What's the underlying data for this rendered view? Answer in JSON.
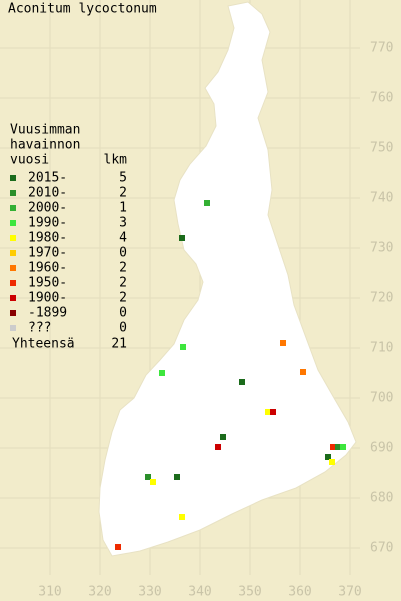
{
  "title": "Aconitum lycoctonum",
  "legend": {
    "heading": [
      "Vuusimman",
      "havainnon",
      "vuosi"
    ],
    "count_heading": "lkm",
    "rows": [
      {
        "label": "2015-",
        "count": 5,
        "color": "#1b6b1b"
      },
      {
        "label": "2010-",
        "count": 2,
        "color": "#2a8f2a"
      },
      {
        "label": "2000-",
        "count": 1,
        "color": "#33b033"
      },
      {
        "label": "1990-",
        "count": 3,
        "color": "#3de63d"
      },
      {
        "label": "1980-",
        "count": 4,
        "color": "#ffff00"
      },
      {
        "label": "1970-",
        "count": 0,
        "color": "#ffcc00"
      },
      {
        "label": "1960-",
        "count": 2,
        "color": "#ff7700"
      },
      {
        "label": "1950-",
        "count": 2,
        "color": "#ee2a00"
      },
      {
        "label": "1900-",
        "count": 2,
        "color": "#cc0000"
      },
      {
        "label": "-1899",
        "count": 0,
        "color": "#880000"
      },
      {
        "label": "???",
        "count": 0,
        "color": "#cccccc"
      }
    ],
    "total_label": "Yhteensä",
    "total": 21
  },
  "x_labels": [
    310,
    320,
    330,
    340,
    350,
    360,
    370
  ],
  "y_labels": [
    770,
    760,
    750,
    740,
    730,
    720,
    710,
    700,
    690,
    680,
    670
  ],
  "points": [
    {
      "x": 341.4,
      "y": 739.0,
      "color": "#33b033"
    },
    {
      "x": 336.4,
      "y": 732.0,
      "color": "#1b6b1b"
    },
    {
      "x": 336.6,
      "y": 710.2,
      "color": "#3de63d"
    },
    {
      "x": 332.4,
      "y": 705.0,
      "color": "#3de63d"
    },
    {
      "x": 348.4,
      "y": 703.2,
      "color": "#1b6b1b"
    },
    {
      "x": 356.6,
      "y": 711.0,
      "color": "#ff7700"
    },
    {
      "x": 360.6,
      "y": 705.2,
      "color": "#ff7700"
    },
    {
      "x": 353.6,
      "y": 697.2,
      "color": "#ffff00"
    },
    {
      "x": 354.6,
      "y": 697.2,
      "color": "#cc0000"
    },
    {
      "x": 344.6,
      "y": 692.2,
      "color": "#1b6b1b"
    },
    {
      "x": 343.6,
      "y": 690.2,
      "color": "#cc0000"
    },
    {
      "x": 366.6,
      "y": 690.2,
      "color": "#ee2a00"
    },
    {
      "x": 367.6,
      "y": 690.2,
      "color": "#2a8f2a"
    },
    {
      "x": 368.6,
      "y": 690.2,
      "color": "#3de63d"
    },
    {
      "x": 365.6,
      "y": 688.2,
      "color": "#1b6b1b"
    },
    {
      "x": 366.4,
      "y": 687.2,
      "color": "#ffff00"
    },
    {
      "x": 329.6,
      "y": 684.2,
      "color": "#2a8f2a"
    },
    {
      "x": 330.6,
      "y": 683.2,
      "color": "#ffff00"
    },
    {
      "x": 335.4,
      "y": 684.2,
      "color": "#1b6b1b"
    },
    {
      "x": 336.4,
      "y": 676.2,
      "color": "#ffff00"
    },
    {
      "x": 323.6,
      "y": 670.2,
      "color": "#ee2a00"
    }
  ]
}
